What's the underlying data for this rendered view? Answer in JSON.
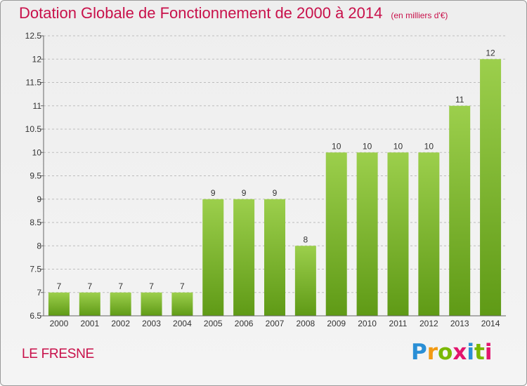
{
  "title": "Dotation Globale de Fonctionnement de 2000 à 2014",
  "units": "(en milliers d'€)",
  "location": "LE FRESNE",
  "logo_text": "Proxiti",
  "colors": {
    "accent": "#c8104a",
    "bar_top": "#9ccf4c",
    "bar_bottom": "#5f9a16",
    "grid": "#bdbdbd"
  },
  "chart_data": {
    "type": "bar",
    "title": "Dotation Globale de Fonctionnement de 2000 à 2014",
    "subtitle": "(en milliers d'€)",
    "xlabel": "",
    "ylabel": "",
    "categories": [
      "2000",
      "2001",
      "2002",
      "2003",
      "2004",
      "2005",
      "2006",
      "2007",
      "2008",
      "2009",
      "2010",
      "2011",
      "2012",
      "2013",
      "2014"
    ],
    "values": [
      7,
      7,
      7,
      7,
      7,
      9,
      9,
      9,
      8,
      10,
      10,
      10,
      10,
      11,
      12
    ],
    "ylim": [
      6.5,
      12.5
    ],
    "yticks": [
      "6.5",
      "7",
      "7.5",
      "8",
      "8.5",
      "9",
      "9.5",
      "10",
      "10.5",
      "11",
      "11.5",
      "12",
      "12.5"
    ],
    "grid": "horizontal dashed",
    "legend": "none"
  }
}
